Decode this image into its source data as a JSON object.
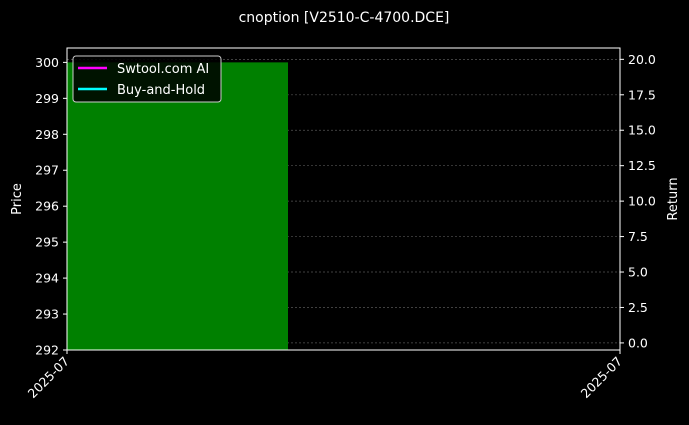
{
  "chart_data": {
    "type": "bar",
    "title": "cnoption [V2510-C-4700.DCE]",
    "ylabel": "Price",
    "y2label": "Return",
    "x_tick_labels": [
      "2025-07",
      "2025-07"
    ],
    "ylim": [
      292,
      300.4
    ],
    "y_ticks": [
      292,
      293,
      294,
      295,
      296,
      297,
      298,
      299,
      300
    ],
    "y2lim": [
      -0.5,
      20.8
    ],
    "y2_ticks": [
      "0.0",
      "2.5",
      "5.0",
      "7.5",
      "10.0",
      "12.5",
      "15.0",
      "17.5",
      "20.0"
    ],
    "bars": [
      {
        "x": "2025-07",
        "value": 300,
        "color": "#008000"
      }
    ],
    "series": [
      {
        "name": "Swtool.com AI",
        "color": "#ff00ff",
        "values": []
      },
      {
        "name": "Buy-and-Hold",
        "color": "#00ffff",
        "values": []
      }
    ],
    "grid": true,
    "legend_position": "top-left"
  }
}
